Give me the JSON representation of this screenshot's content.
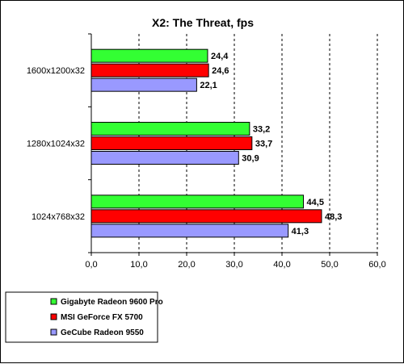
{
  "chart_data": {
    "type": "bar",
    "orientation": "horizontal",
    "title": "X2: The Threat, fps",
    "xlabel": "",
    "ylabel": "",
    "xlim": [
      0,
      60
    ],
    "x_ticks": [
      0,
      10,
      20,
      30,
      40,
      50,
      60
    ],
    "x_tick_labels": [
      "0,0",
      "10,0",
      "20,0",
      "30,0",
      "40,0",
      "50,0",
      "60,0"
    ],
    "grid": "vertical dashed",
    "legend_position": "bottom-left",
    "categories": [
      "1600x1200x32",
      "1280x1024x32",
      "1024x768x32"
    ],
    "series": [
      {
        "name": "Gigabyte Radeon 9600 Pro",
        "color": "#33ff33",
        "values": [
          24.4,
          33.2,
          44.5
        ],
        "labels": [
          "24,4",
          "33,2",
          "44,5"
        ]
      },
      {
        "name": "MSI GeForce FX 5700",
        "color": "#ff0000",
        "values": [
          24.6,
          33.7,
          48.3
        ],
        "labels": [
          "24,6",
          "33,7",
          "48,3"
        ]
      },
      {
        "name": "GeCube Radeon 9550",
        "color": "#9999ff",
        "values": [
          22.1,
          30.9,
          41.3
        ],
        "labels": [
          "22,1",
          "30,9",
          "41,3"
        ]
      }
    ]
  }
}
